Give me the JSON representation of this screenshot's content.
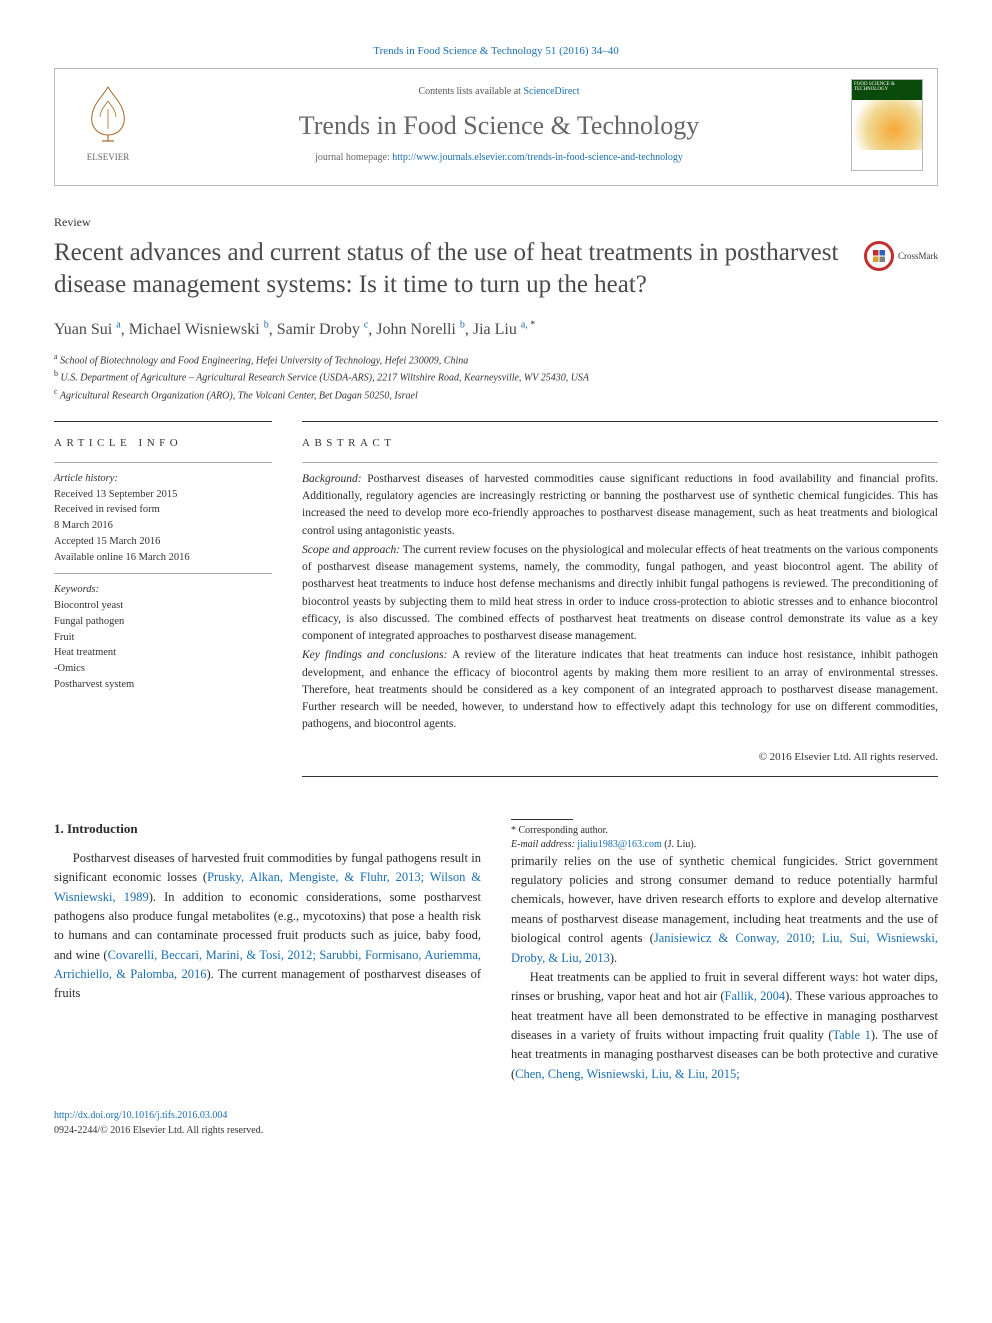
{
  "colors": {
    "link": "#1a6eb0",
    "text": "#2a2a2a",
    "muted": "#666666",
    "rule": "#333333",
    "crossmark_ring": "#c03030",
    "cover_green": "#0a4a0a"
  },
  "journal_ref": "Trends in Food Science & Technology 51 (2016) 34–40",
  "header": {
    "contents_text": "Contents lists available at ",
    "contents_link": "ScienceDirect",
    "journal_name": "Trends in Food Science & Technology",
    "homepage_label": "journal homepage: ",
    "homepage_url": "http://www.journals.elsevier.com/trends-in-food-science-and-technology",
    "publisher": "ELSEVIER",
    "cover_caption": "FOOD SCIENCE & TECHNOLOGY"
  },
  "crossmark_label": "CrossMark",
  "section_label": "Review",
  "title": "Recent advances and current status of the use of heat treatments in postharvest disease management systems: Is it time to turn up the heat?",
  "authors_html": "Yuan Sui <sup>a</sup>, Michael Wisniewski <sup>b</sup>, Samir Droby <sup>c</sup>, John Norelli <sup>b</sup>, Jia Liu <sup>a, <span class='star'>*</span></sup>",
  "affiliations": [
    "a School of Biotechnology and Food Engineering, Hefei University of Technology, Hefei 230009, China",
    "b U.S. Department of Agriculture – Agricultural Research Service (USDA-ARS), 2217 Wiltshire Road, Kearneysville, WV 25430, USA",
    "c Agricultural Research Organization (ARO), The Volcani Center, Bet Dagan 50250, Israel"
  ],
  "info": {
    "heading": "ARTICLE INFO",
    "history_label": "Article history:",
    "history": [
      "Received 13 September 2015",
      "Received in revised form",
      "8 March 2016",
      "Accepted 15 March 2016",
      "Available online 16 March 2016"
    ],
    "keywords_label": "Keywords:",
    "keywords": [
      "Biocontrol yeast",
      "Fungal pathogen",
      "Fruit",
      "Heat treatment",
      "-Omics",
      "Postharvest system"
    ]
  },
  "abstract": {
    "heading": "ABSTRACT",
    "background_head": "Background:",
    "background": " Postharvest diseases of harvested commodities cause significant reductions in food availability and financial profits. Additionally, regulatory agencies are increasingly restricting or banning the postharvest use of synthetic chemical fungicides. This has increased the need to develop more eco-friendly approaches to postharvest disease management, such as heat treatments and biological control using antagonistic yeasts.",
    "scope_head": "Scope and approach:",
    "scope": " The current review focuses on the physiological and molecular effects of heat treatments on the various components of postharvest disease management systems, namely, the commodity, fungal pathogen, and yeast biocontrol agent. The ability of postharvest heat treatments to induce host defense mechanisms and directly inhibit fungal pathogens is reviewed. The preconditioning of biocontrol yeasts by subjecting them to mild heat stress in order to induce cross-protection to abiotic stresses and to enhance biocontrol efficacy, is also discussed. The combined effects of postharvest heat treatments on disease control demonstrate its value as a key component of integrated approaches to postharvest disease management.",
    "findings_head": "Key findings and conclusions:",
    "findings": " A review of the literature indicates that heat treatments can induce host resistance, inhibit pathogen development, and enhance the efficacy of biocontrol agents by making them more resilient to an array of environmental stresses. Therefore, heat treatments should be considered as a key component of an integrated approach to postharvest disease management. Further research will be needed, however, to understand how to effectively adapt this technology for use on different commodities, pathogens, and biocontrol agents.",
    "copyright": "© 2016 Elsevier Ltd. All rights reserved."
  },
  "body": {
    "h1": "1. Introduction",
    "p1a": "Postharvest diseases of harvested fruit commodities by fungal pathogens result in significant economic losses (",
    "p1_ref1": "Prusky, Alkan, Mengiste, & Fluhr, 2013; Wilson & Wisniewski, 1989",
    "p1b": "). In addition to economic considerations, some postharvest pathogens also produce fungal metabolites (e.g., mycotoxins) that pose a health risk to humans and can contaminate processed fruit products such as juice, baby food, and wine (",
    "p1_ref2": "Covarelli, Beccari, Marini, & Tosi, 2012; Sarubbi, Formisano, Auriemma, Arrichiello, & Palomba, 2016",
    "p1c": "). The current management of postharvest diseases of fruits",
    "p2a": "primarily relies on the use of synthetic chemical fungicides. Strict government regulatory policies and strong consumer demand to reduce potentially harmful chemicals, however, have driven research efforts to explore and develop alternative means of postharvest disease management, including heat treatments and the use of biological control agents (",
    "p2_ref1": "Janisiewicz & Conway, 2010; Liu, Sui, Wisniewski, Droby, & Liu, 2013",
    "p2b": ").",
    "p3a": "Heat treatments can be applied to fruit in several different ways: hot water dips, rinses or brushing, vapor heat and hot air (",
    "p3_ref1": "Fallik, 2004",
    "p3b": "). These various approaches to heat treatment have all been demonstrated to be effective in managing postharvest diseases in a variety of fruits without impacting fruit quality (",
    "p3_ref2": "Table 1",
    "p3c": "). The use of heat treatments in managing postharvest diseases can be both protective and curative (",
    "p3_ref3": "Chen, Cheng, Wisniewski, Liu, & Liu, 2015;"
  },
  "footnote": {
    "corresponding": "* Corresponding author.",
    "email_label": "E-mail address:",
    "email": "jialiu1983@163.com",
    "email_who": " (J. Liu)."
  },
  "footer": {
    "doi": "http://dx.doi.org/10.1016/j.tifs.2016.03.004",
    "issn_line": "0924-2244/© 2016 Elsevier Ltd. All rights reserved."
  }
}
